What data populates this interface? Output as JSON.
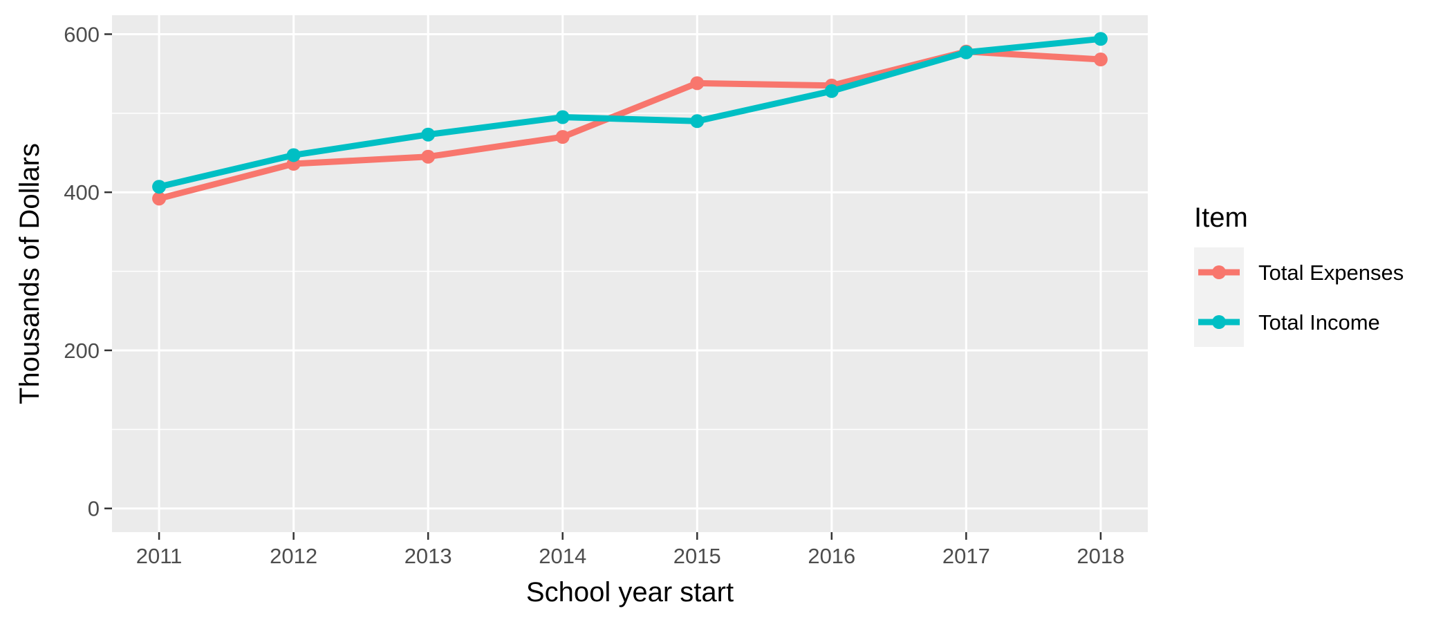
{
  "chart_data": {
    "type": "line",
    "x": [
      2011,
      2012,
      2013,
      2014,
      2015,
      2016,
      2017,
      2018
    ],
    "series": [
      {
        "name": "Total Expenses",
        "color": "#F8766D",
        "values": [
          392,
          436,
          445,
          470,
          538,
          535,
          578,
          568
        ]
      },
      {
        "name": "Total Income",
        "color": "#00BFC4",
        "values": [
          407,
          447,
          473,
          495,
          490,
          528,
          577,
          594
        ]
      }
    ],
    "xlabel": "School year start",
    "ylabel": "Thousands of Dollars",
    "xlim": [
      2010.65,
      2018.35
    ],
    "ylim": [
      -30,
      624
    ],
    "yticks": [
      0,
      200,
      400,
      600
    ],
    "yminor": [
      100,
      300,
      500
    ],
    "xticks": [
      2011,
      2012,
      2013,
      2014,
      2015,
      2016,
      2017,
      2018
    ],
    "grid": true,
    "panel_color": "#EBEBEB",
    "legend": {
      "title": "Item",
      "placement": "right"
    }
  }
}
